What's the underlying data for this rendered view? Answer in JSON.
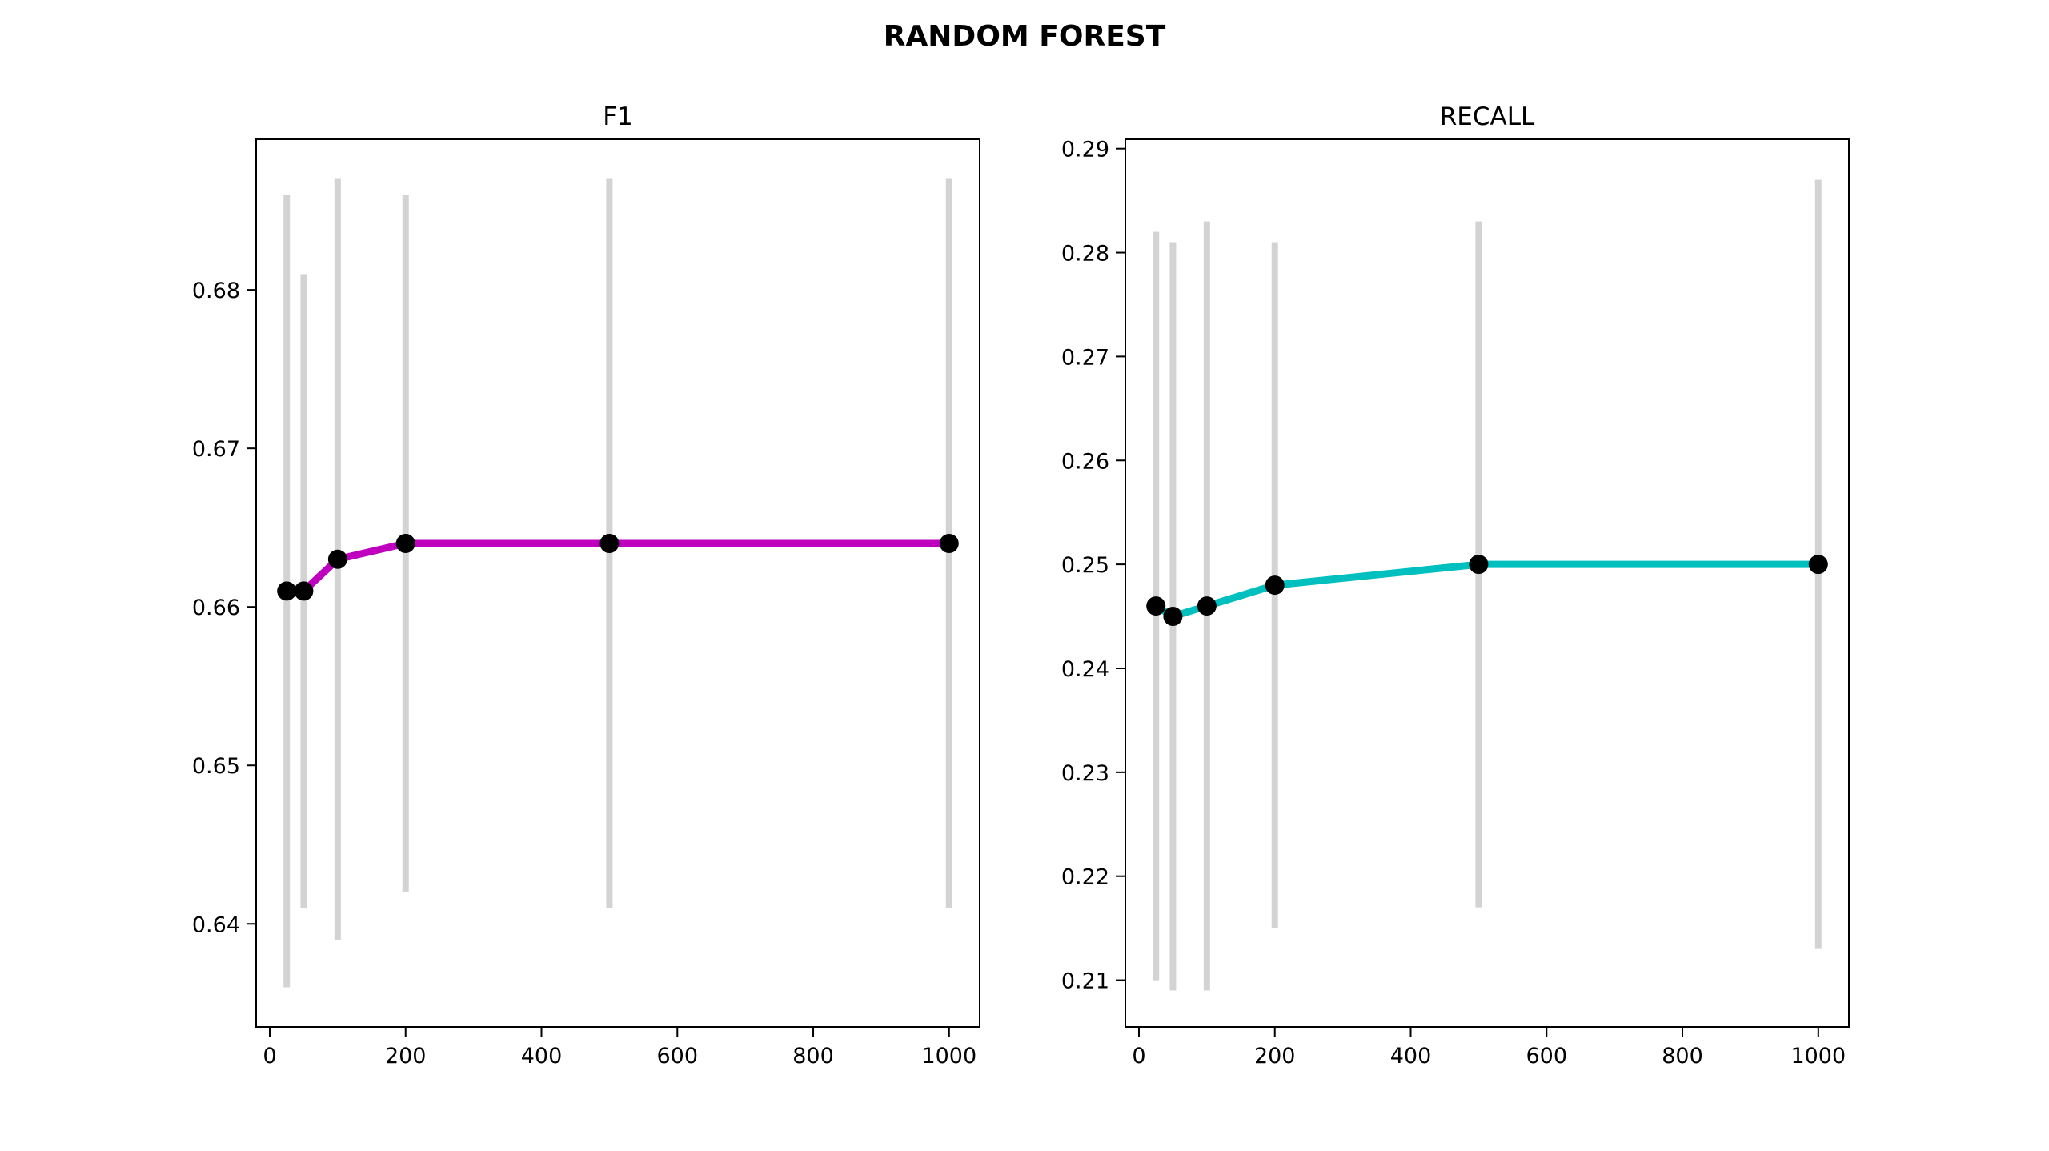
{
  "figure": {
    "title": "RANDOM FOREST"
  },
  "colors": {
    "errorbar": "#d3d3d3",
    "marker": "#000000",
    "f1_line": "#bf00bf",
    "recall_line": "#00bfbf"
  },
  "chart_data": [
    {
      "type": "line",
      "title": "F1",
      "xlabel": "",
      "ylabel": "",
      "x": [
        25,
        50,
        100,
        200,
        500,
        1000
      ],
      "series": [
        {
          "values": [
            0.661,
            0.661,
            0.663,
            0.664,
            0.664,
            0.664
          ],
          "error_low": [
            0.636,
            0.641,
            0.639,
            0.642,
            0.641,
            0.641
          ],
          "error_high": [
            0.686,
            0.681,
            0.687,
            0.686,
            0.687,
            0.687
          ],
          "color": "#bf00bf"
        }
      ],
      "xlim": [
        -20,
        1045
      ],
      "ylim": [
        0.6335,
        0.6895
      ],
      "xticks": [
        0,
        200,
        400,
        600,
        800,
        1000
      ],
      "xtick_labels": [
        "0",
        "200",
        "400",
        "600",
        "800",
        "1000"
      ],
      "yticks": [
        0.64,
        0.65,
        0.66,
        0.67,
        0.68
      ],
      "ytick_labels": [
        "0.64",
        "0.65",
        "0.66",
        "0.67",
        "0.68"
      ],
      "grid": false,
      "legend": "none"
    },
    {
      "type": "line",
      "title": "RECALL",
      "xlabel": "",
      "ylabel": "",
      "x": [
        25,
        50,
        100,
        200,
        500,
        1000
      ],
      "series": [
        {
          "values": [
            0.246,
            0.245,
            0.246,
            0.248,
            0.25,
            0.25
          ],
          "error_low": [
            0.21,
            0.209,
            0.209,
            0.215,
            0.217,
            0.213
          ],
          "error_high": [
            0.282,
            0.281,
            0.283,
            0.281,
            0.283,
            0.287
          ],
          "color": "#00bfbf"
        }
      ],
      "xlim": [
        -20,
        1045
      ],
      "ylim": [
        0.2055,
        0.2909
      ],
      "xticks": [
        0,
        200,
        400,
        600,
        800,
        1000
      ],
      "xtick_labels": [
        "0",
        "200",
        "400",
        "600",
        "800",
        "1000"
      ],
      "yticks": [
        0.21,
        0.22,
        0.23,
        0.24,
        0.25,
        0.26,
        0.27,
        0.28,
        0.29
      ],
      "ytick_labels": [
        "0.21",
        "0.22",
        "0.23",
        "0.24",
        "0.25",
        "0.26",
        "0.27",
        "0.28",
        "0.29"
      ],
      "grid": false,
      "legend": "none"
    }
  ]
}
